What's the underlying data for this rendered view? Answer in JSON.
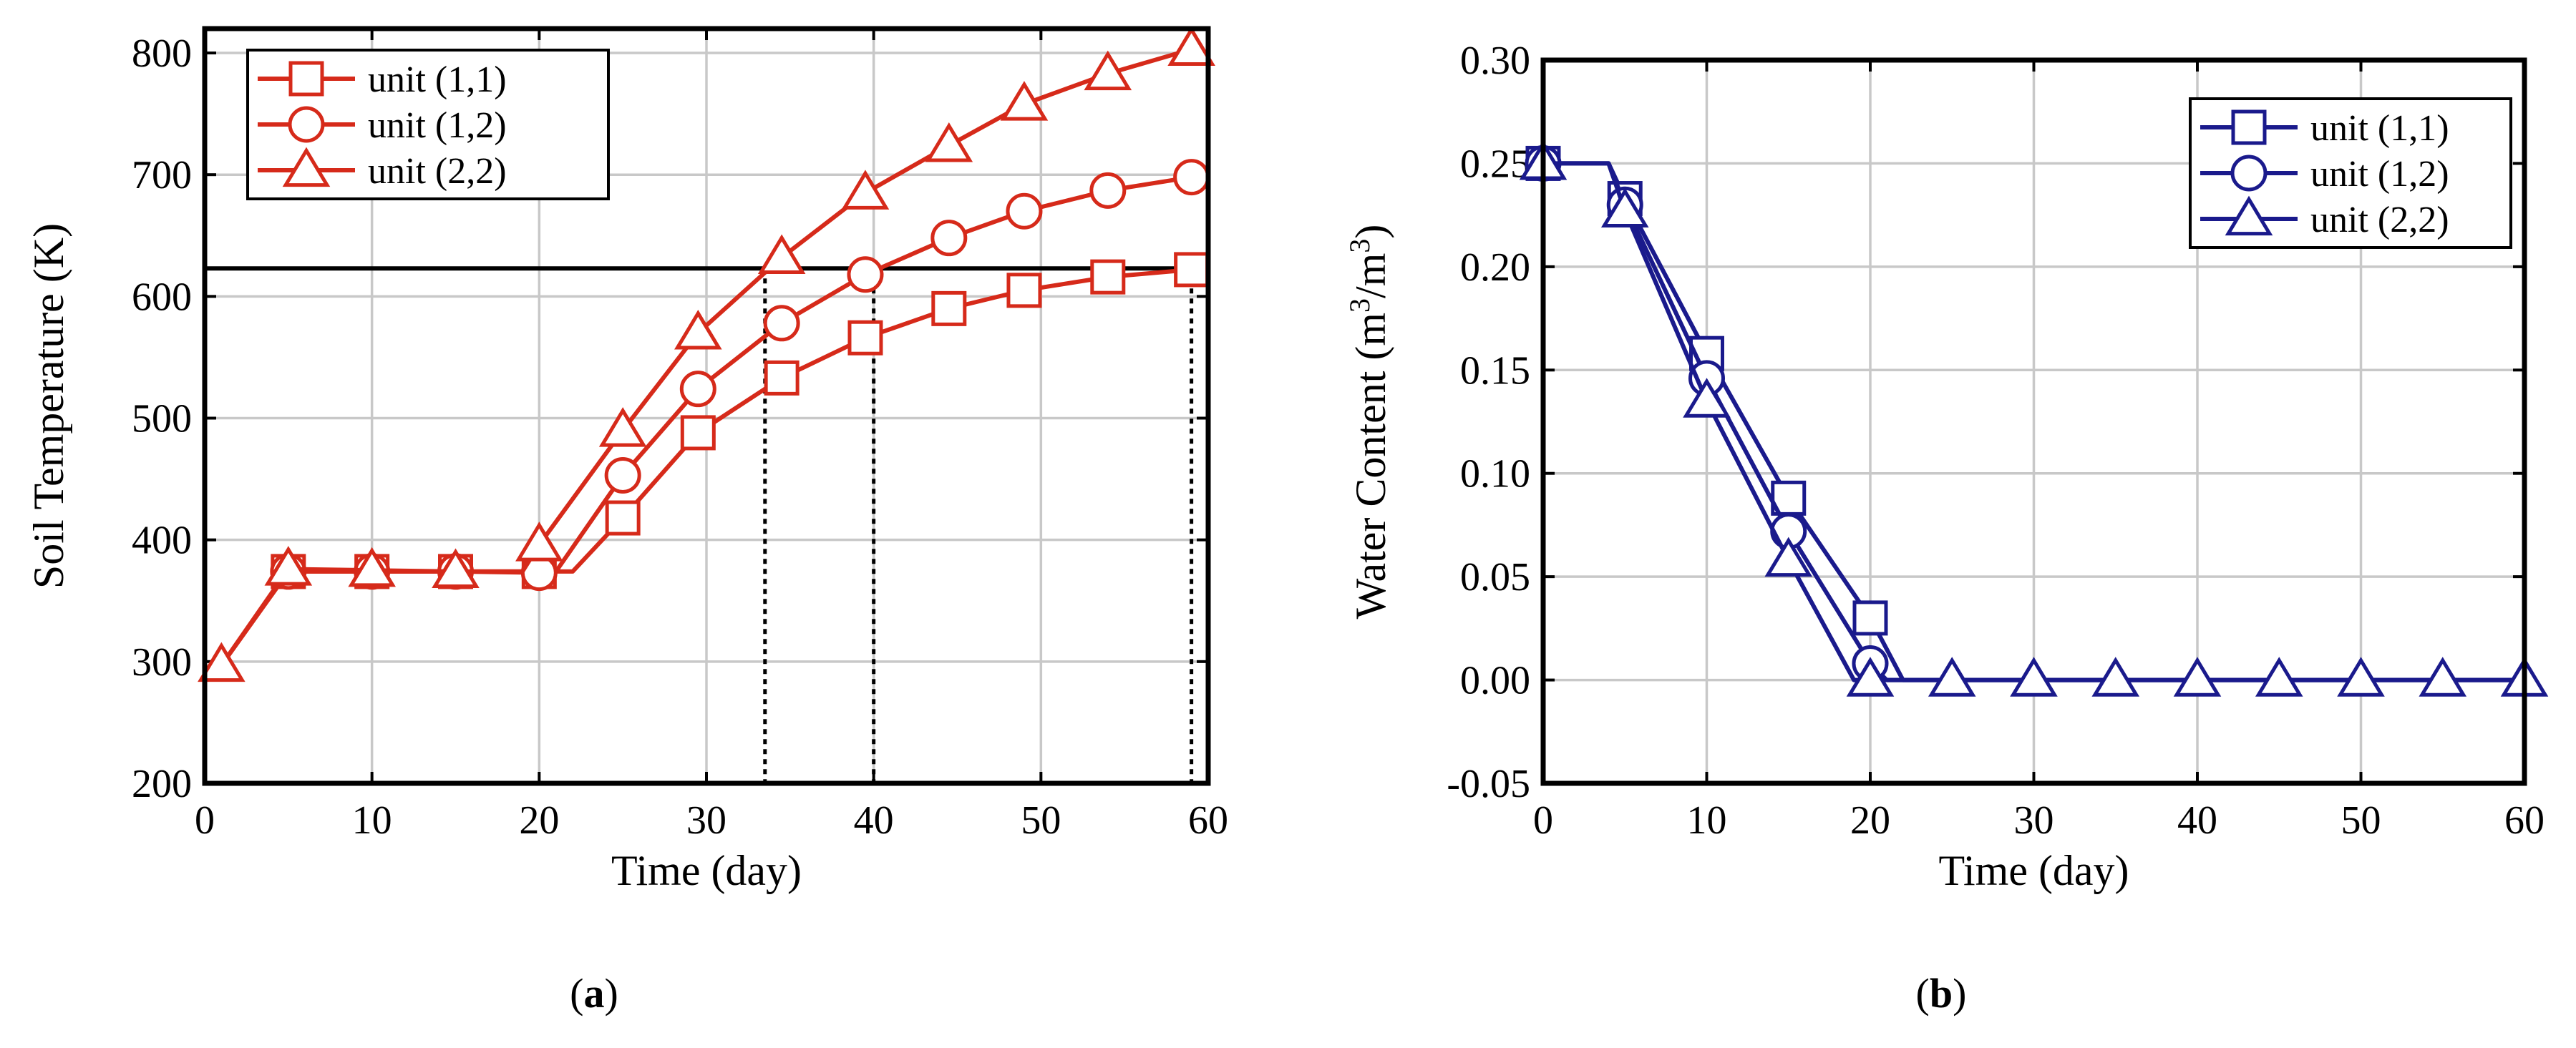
{
  "panels": [
    {
      "panel_label_prefix": "(",
      "panel_label_letter": "a",
      "panel_label_suffix": ")"
    },
    {
      "panel_label_prefix": "(",
      "panel_label_letter": "b",
      "panel_label_suffix": ")"
    }
  ],
  "chart_data": [
    {
      "type": "line",
      "title": "",
      "xlabel": "Time (day)",
      "ylabel": "Soil Temperature (K)",
      "xlim": [
        0,
        60
      ],
      "ylim": [
        200,
        820
      ],
      "xticks": [
        0,
        10,
        20,
        30,
        40,
        50,
        60
      ],
      "yticks": [
        200,
        300,
        400,
        500,
        600,
        700,
        800
      ],
      "grid": true,
      "legend_position": "top-left",
      "color": "#d62a1a",
      "reference_line": {
        "y": 623
      },
      "vertical_markers": [
        33.5,
        40,
        59
      ],
      "series": [
        {
          "name": "unit (1,1)",
          "marker": "square",
          "x": [
            0,
            1,
            5,
            10,
            15,
            20,
            22,
            25,
            29.5,
            34.5,
            39.5,
            44.5,
            49,
            54,
            59
          ],
          "y": [
            290,
            297,
            374,
            374,
            374,
            374,
            374,
            418,
            488,
            533,
            566,
            590,
            605,
            616,
            622
          ],
          "marker_x": [
            5,
            10,
            15,
            20,
            25,
            29.5,
            34.5,
            39.5,
            44.5,
            49,
            54,
            59
          ]
        },
        {
          "name": "unit (1,2)",
          "marker": "circle",
          "x": [
            0,
            1,
            5,
            10,
            15,
            20,
            21,
            25,
            29.5,
            34.5,
            39.5,
            44.5,
            49,
            54,
            59
          ],
          "y": [
            290,
            297,
            374,
            374,
            374,
            373,
            374,
            453,
            524,
            578,
            618,
            648,
            670,
            687,
            698
          ],
          "marker_x": [
            5,
            10,
            15,
            20,
            25,
            29.5,
            34.5,
            39.5,
            44.5,
            49,
            54,
            59
          ]
        },
        {
          "name": "unit (2,2)",
          "marker": "triangle",
          "x": [
            0,
            1,
            5,
            10,
            15,
            19,
            20,
            25,
            29.5,
            34.5,
            39.5,
            44.5,
            49,
            54,
            59
          ],
          "y": [
            290,
            297,
            376,
            375,
            374,
            374,
            396,
            490,
            570,
            632,
            685,
            724,
            758,
            783,
            803
          ],
          "marker_x": [
            1,
            5,
            10,
            15,
            20,
            25,
            29.5,
            34.5,
            39.5,
            44.5,
            49,
            54,
            59
          ]
        }
      ]
    },
    {
      "type": "line",
      "title": "",
      "xlabel": "Time (day)",
      "ylabel_main": "Water Content (m",
      "ylabel_sup1": "3",
      "ylabel_mid": "/m",
      "ylabel_sup2": "3",
      "ylabel_end": ")",
      "xlim": [
        0,
        60
      ],
      "ylim": [
        -0.05,
        0.3
      ],
      "xticks": [
        0,
        10,
        20,
        30,
        40,
        50,
        60
      ],
      "yticks": [
        -0.05,
        0.0,
        0.05,
        0.1,
        0.15,
        0.2,
        0.25,
        0.3
      ],
      "ytick_labels": [
        "-0.05",
        "0.00",
        "0.05",
        "0.10",
        "0.15",
        "0.20",
        "0.25",
        "0.30"
      ],
      "grid": true,
      "legend_position": "top-right",
      "color": "#1a1a8c",
      "series": [
        {
          "name": "unit (1,1)",
          "marker": "square",
          "x": [
            0,
            4,
            5,
            10,
            15,
            20,
            22,
            25,
            30,
            35,
            40,
            45,
            50,
            55,
            60
          ],
          "y": [
            0.25,
            0.25,
            0.233,
            0.158,
            0.088,
            0.03,
            0.0,
            0.0,
            0.0,
            0.0,
            0.0,
            0.0,
            0.0,
            0.0,
            0.0
          ],
          "marker_x": [
            0,
            5,
            10,
            15,
            20
          ]
        },
        {
          "name": "unit (1,2)",
          "marker": "circle",
          "x": [
            0,
            4,
            5,
            10,
            15,
            20,
            21,
            25,
            30,
            35,
            40,
            45,
            50,
            55,
            60
          ],
          "y": [
            0.25,
            0.25,
            0.23,
            0.146,
            0.072,
            0.008,
            0.0,
            0.0,
            0.0,
            0.0,
            0.0,
            0.0,
            0.0,
            0.0,
            0.0
          ],
          "marker_x": [
            0,
            5,
            10,
            15,
            20
          ]
        },
        {
          "name": "unit (2,2)",
          "marker": "triangle",
          "x": [
            0,
            4,
            5,
            10,
            15,
            19,
            20,
            25,
            30,
            35,
            40,
            45,
            50,
            55,
            60
          ],
          "y": [
            0.25,
            0.25,
            0.227,
            0.135,
            0.058,
            0.0,
            0.0,
            0.0,
            0.0,
            0.0,
            0.0,
            0.0,
            0.0,
            0.0,
            0.0
          ],
          "marker_x": [
            0,
            5,
            10,
            15,
            20,
            25,
            30,
            35,
            40,
            45,
            50,
            55,
            60
          ]
        }
      ]
    }
  ]
}
